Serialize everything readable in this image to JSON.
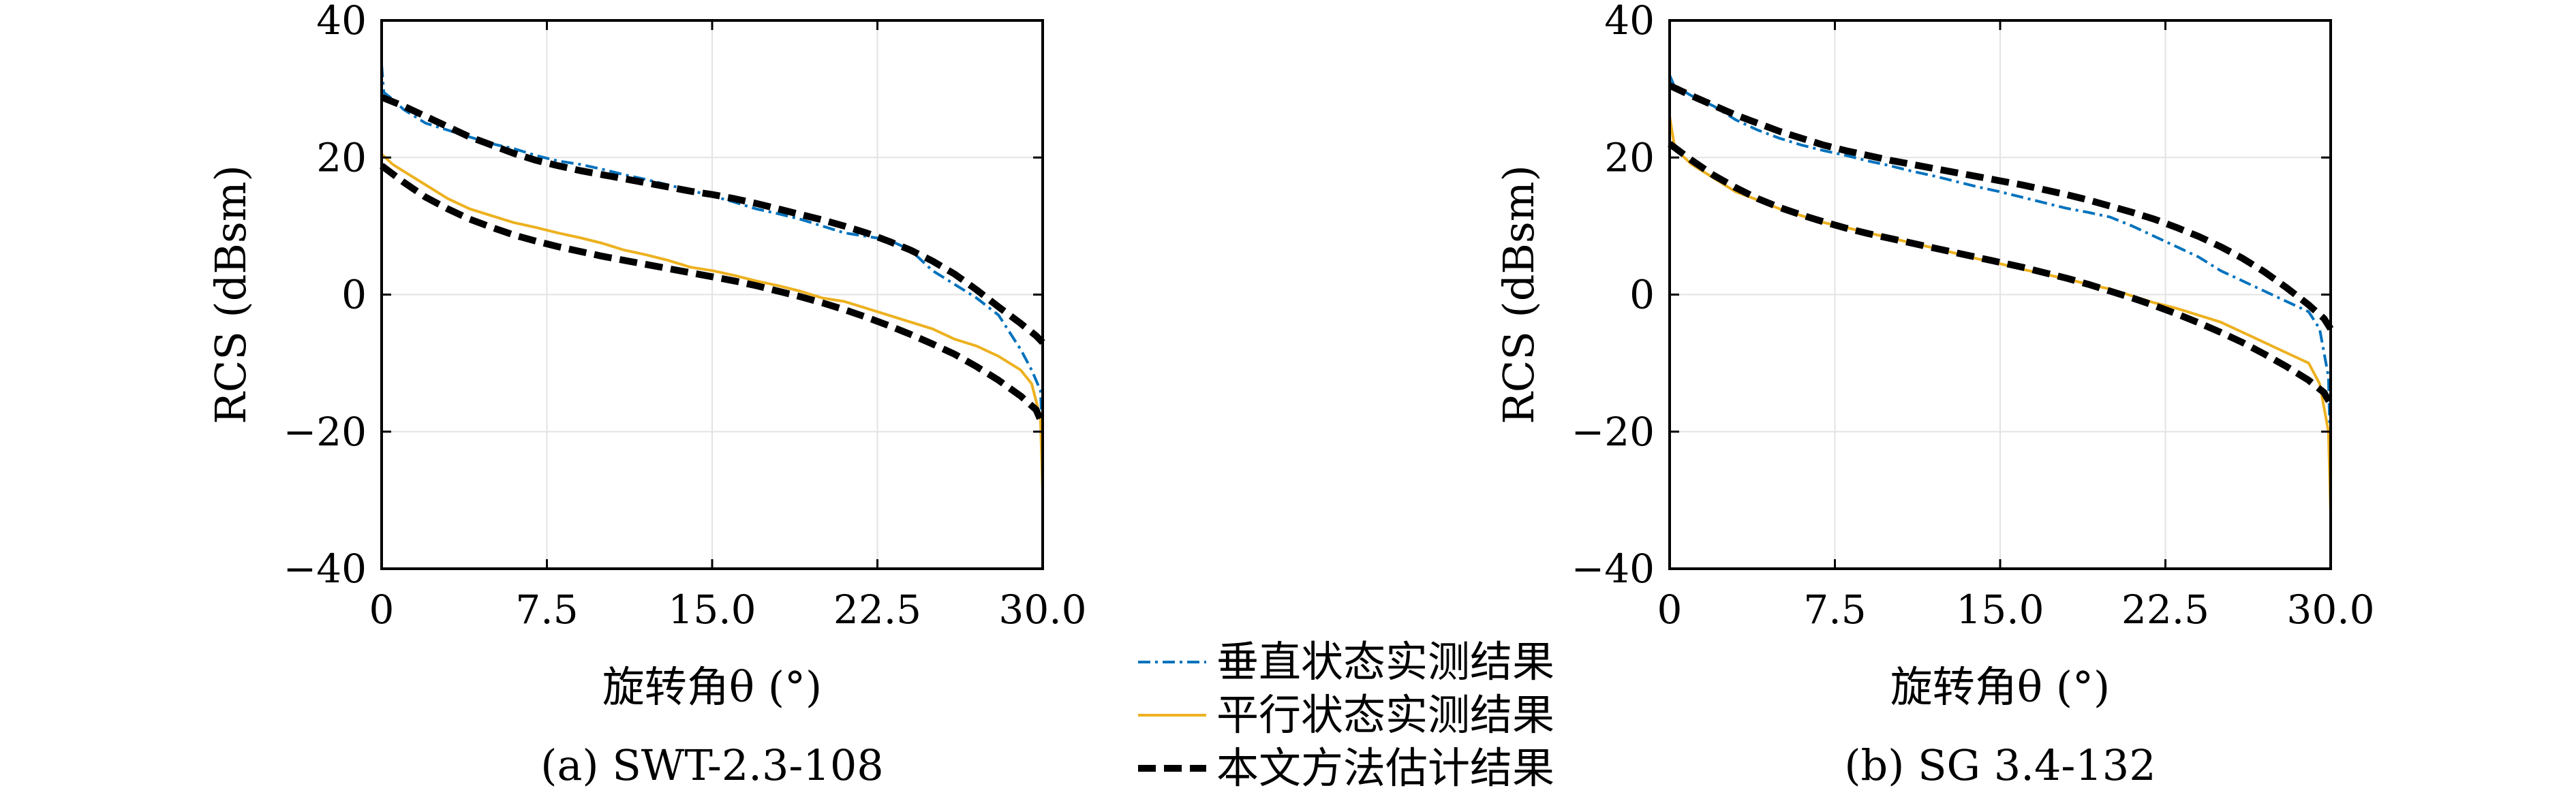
{
  "chart_data": [
    {
      "type": "line",
      "caption": "(a) SWT-2.3-108",
      "xlabel": "旋转角θ (°)",
      "ylabel": "RCS (dBsm)",
      "xlim": [
        0,
        30
      ],
      "ylim": [
        -40,
        40
      ],
      "xticks": [
        "0",
        "7.5",
        "15.0",
        "22.5",
        "30.0"
      ],
      "xtick_values": [
        0,
        7.5,
        15,
        22.5,
        30
      ],
      "yticks": [
        "−40",
        "−20",
        "0",
        "20",
        "40"
      ],
      "ytick_values": [
        -40,
        -20,
        0,
        20,
        40
      ],
      "grid": true,
      "series": [
        {
          "name": "垂直状态实测结果",
          "style": "dashdot",
          "color": "#0072BD",
          "x": [
            0,
            0.1,
            0.5,
            1,
            2,
            3,
            4,
            5,
            6,
            7,
            8,
            9,
            10,
            11,
            12,
            13,
            14,
            15,
            16,
            17,
            18,
            19,
            20,
            21,
            22,
            23,
            24,
            25,
            26,
            27,
            28,
            29,
            29.5,
            29.9,
            30
          ],
          "y": [
            33.5,
            29.5,
            28.5,
            27,
            25,
            24,
            23,
            22,
            21.3,
            20.3,
            19.5,
            19,
            18.3,
            17.5,
            16.8,
            16,
            15.2,
            14.4,
            13.5,
            12.5,
            11.8,
            11,
            10,
            9,
            8.5,
            8,
            6.5,
            3.5,
            1.5,
            -0.5,
            -3,
            -8,
            -11,
            -14,
            -21
          ]
        },
        {
          "name": "平行状态实测结果",
          "style": "solid",
          "color": "#EDB120",
          "x": [
            0,
            0.5,
            1,
            2,
            3,
            4,
            5,
            6,
            7,
            8,
            9,
            10,
            11,
            12,
            13,
            14,
            15,
            16,
            17,
            18,
            19,
            20,
            21,
            22,
            23,
            24,
            25,
            26,
            27,
            28,
            29,
            29.5,
            29.9,
            30
          ],
          "y": [
            20.5,
            19,
            18,
            16,
            14,
            12.5,
            11.5,
            10.5,
            9.8,
            9,
            8.3,
            7.5,
            6.5,
            5.8,
            5,
            4,
            3.5,
            2.8,
            2,
            1.3,
            0.5,
            -0.5,
            -1,
            -2,
            -3,
            -4,
            -5,
            -6.5,
            -7.5,
            -9,
            -11,
            -13,
            -18,
            -29
          ]
        },
        {
          "name": "本文方法估计结果",
          "style": "dashed",
          "color": "#000000",
          "x": [
            0,
            1,
            2,
            3,
            4,
            5,
            6,
            7,
            8,
            9,
            10,
            11,
            12,
            13,
            14,
            15,
            16,
            17,
            18,
            19,
            20,
            21,
            22,
            23,
            24,
            25,
            26,
            27,
            28,
            29,
            29.7,
            30
          ],
          "y": [
            28.8,
            27.5,
            26,
            24.5,
            23,
            21.8,
            20.6,
            19.6,
            18.8,
            18.1,
            17.5,
            16.9,
            16.3,
            15.7,
            15.1,
            14.6,
            14,
            13.3,
            12.5,
            11.7,
            10.9,
            10,
            9,
            7.8,
            6.5,
            4.9,
            3,
            0.7,
            -1.8,
            -4.2,
            -6,
            -7
          ]
        },
        {
          "name": "",
          "style": "dashed",
          "color": "#000000",
          "x": [
            0,
            1,
            2,
            3,
            4,
            5,
            6,
            7,
            8,
            9,
            10,
            11,
            12,
            13,
            14,
            15,
            16,
            17,
            18,
            19,
            20,
            21,
            22,
            23,
            24,
            25,
            26,
            27,
            28,
            29,
            29.7,
            30
          ],
          "y": [
            18.8,
            16.4,
            14.2,
            12.5,
            11,
            9.8,
            8.7,
            7.8,
            7,
            6.3,
            5.6,
            5,
            4.4,
            3.8,
            3.2,
            2.6,
            2,
            1.3,
            0.5,
            -0.3,
            -1.2,
            -2.2,
            -3.3,
            -4.5,
            -5.8,
            -7.2,
            -8.7,
            -10.5,
            -12.5,
            -14.8,
            -16.8,
            -19
          ]
        }
      ]
    },
    {
      "type": "line",
      "caption": "(b) SG 3.4-132",
      "xlabel": "旋转角θ (°)",
      "ylabel": "RCS (dBsm)",
      "xlim": [
        0,
        30
      ],
      "ylim": [
        -40,
        40
      ],
      "xticks": [
        "0",
        "7.5",
        "15.0",
        "22.5",
        "30.0"
      ],
      "xtick_values": [
        0,
        7.5,
        15,
        22.5,
        30
      ],
      "yticks": [
        "−40",
        "−20",
        "0",
        "20",
        "40"
      ],
      "ytick_values": [
        -40,
        -20,
        0,
        20,
        40
      ],
      "grid": true,
      "series": [
        {
          "name": "垂直状态实测结果",
          "style": "dashdot",
          "color": "#0072BD",
          "x": [
            0,
            0.2,
            1,
            2,
            3,
            4,
            5,
            6,
            7,
            8,
            9,
            10,
            11,
            12,
            13,
            14,
            15,
            16,
            17,
            18,
            19,
            20,
            21,
            22,
            23,
            24,
            25,
            26,
            27,
            28,
            29,
            29.5,
            29.9,
            30
          ],
          "y": [
            32,
            30.5,
            29,
            27.5,
            25.5,
            24,
            22.8,
            21.8,
            21,
            20.3,
            19.5,
            18.8,
            18,
            17.3,
            16.5,
            15.7,
            15,
            14.2,
            13.4,
            12.6,
            12,
            11.3,
            10,
            8.5,
            7,
            5.5,
            3.5,
            2,
            0.5,
            -1,
            -2.5,
            -5,
            -12,
            -25
          ]
        },
        {
          "name": "平行状态实测结果",
          "style": "solid",
          "color": "#EDB120",
          "x": [
            0,
            0.2,
            0.5,
            1,
            2,
            3,
            4,
            5,
            6,
            7,
            8,
            9,
            10,
            11,
            12,
            13,
            14,
            15,
            16,
            17,
            18,
            19,
            20,
            21,
            22,
            23,
            24,
            25,
            26,
            27,
            28,
            29,
            29.5,
            29.9,
            30
          ],
          "y": [
            26,
            22,
            20.5,
            19,
            17,
            15,
            13.8,
            12.5,
            11.5,
            10.5,
            9.8,
            9,
            8.3,
            7.5,
            6.8,
            6,
            5.2,
            4.5,
            3.7,
            3,
            2.3,
            1.5,
            0.8,
            -0.2,
            -1.2,
            -2,
            -3,
            -4,
            -5.5,
            -7,
            -8.5,
            -10,
            -13,
            -20,
            -32
          ]
        },
        {
          "name": "本文方法估计结果",
          "style": "dashed",
          "color": "#000000",
          "x": [
            0,
            1,
            2,
            3,
            4,
            5,
            6,
            7,
            8,
            9,
            10,
            11,
            12,
            13,
            14,
            15,
            16,
            17,
            18,
            19,
            20,
            21,
            22,
            23,
            24,
            25,
            26,
            27,
            28,
            29,
            29.7,
            30
          ],
          "y": [
            30.5,
            29,
            27.6,
            26.2,
            25,
            23.8,
            22.8,
            21.8,
            21,
            20.3,
            19.6,
            19,
            18.4,
            17.8,
            17.2,
            16.6,
            16,
            15.3,
            14.6,
            13.8,
            12.9,
            12,
            11,
            9.8,
            8.5,
            7,
            5.3,
            3.3,
            1,
            -1.5,
            -3.5,
            -5
          ]
        },
        {
          "name": "",
          "style": "dashed",
          "color": "#000000",
          "x": [
            0,
            1,
            2,
            3,
            4,
            5,
            6,
            7,
            8,
            9,
            10,
            11,
            12,
            13,
            14,
            15,
            16,
            17,
            18,
            19,
            20,
            21,
            22,
            23,
            24,
            25,
            26,
            27,
            28,
            29,
            29.7,
            30
          ],
          "y": [
            22,
            19.6,
            17.4,
            15.6,
            14,
            12.7,
            11.6,
            10.6,
            9.7,
            8.9,
            8.2,
            7.5,
            6.8,
            6.1,
            5.4,
            4.7,
            4,
            3.2,
            2.4,
            1.5,
            0.5,
            -0.5,
            -1.6,
            -2.8,
            -4.1,
            -5.5,
            -7,
            -8.7,
            -10.5,
            -12.5,
            -14.3,
            -16
          ]
        }
      ]
    }
  ],
  "legend": {
    "placement": "bottom-center",
    "entries": [
      {
        "label": "垂直状态实测结果",
        "style": "dashdot",
        "color": "#0072BD"
      },
      {
        "label": "平行状态实测结果",
        "style": "solid",
        "color": "#EDB120"
      },
      {
        "label": "本文方法估计结果",
        "style": "dashed",
        "color": "#000000"
      }
    ]
  }
}
